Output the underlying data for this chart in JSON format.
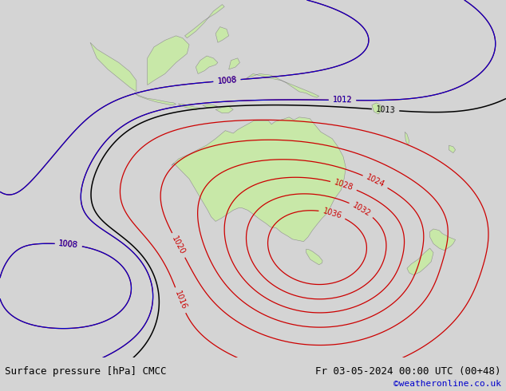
{
  "title_left": "Surface pressure [hPa] CMCC",
  "title_right": "Fr 03-05-2024 00:00 UTC (00+48)",
  "credit": "©weatheronline.co.uk",
  "bg_color": "#d4d4d4",
  "land_color": "#c8e8a8",
  "contour_levels_red": [
    1008,
    1012,
    1016,
    1020,
    1024,
    1028,
    1032,
    1036
  ],
  "contour_levels_blue": [
    1008,
    1012
  ],
  "contour_levels_black": [
    1013
  ],
  "red_color": "#cc0000",
  "blue_color": "#0000cc",
  "black_color": "#000000",
  "font_size_labels": 7,
  "font_size_title": 9,
  "font_size_credit": 8,
  "lon_min": 75,
  "lon_max": 190,
  "lat_min": -65,
  "lat_max": 15
}
